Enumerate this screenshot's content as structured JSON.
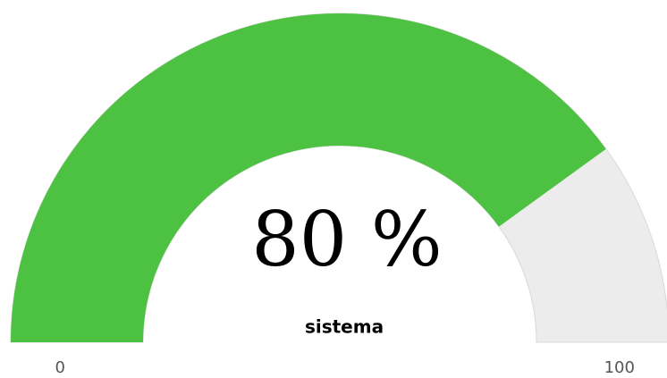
{
  "chart_data": {
    "type": "gauge",
    "value": 80,
    "value_label": "80 %",
    "label": "sistema",
    "ylim": [
      0,
      100
    ],
    "yticks": [
      0,
      100
    ],
    "color": "#4cc142",
    "track_color": "#ececec"
  }
}
